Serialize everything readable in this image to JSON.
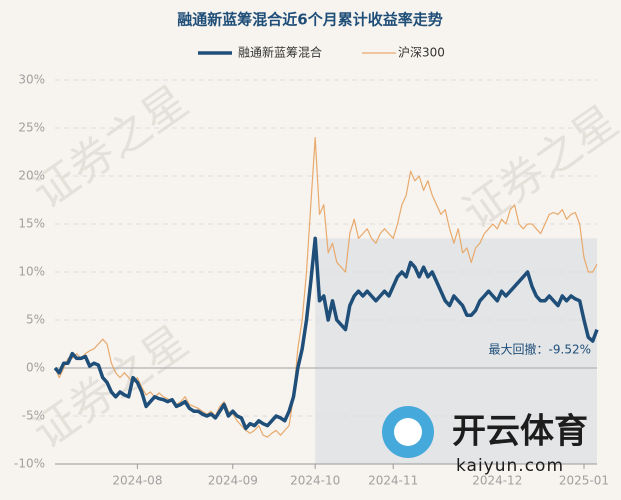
{
  "chart_data": {
    "type": "line",
    "title": "融通新蓝筹混合近6个月累计收益率走势",
    "categories": [
      null,
      null,
      null,
      null,
      null,
      null,
      null,
      null,
      null,
      null,
      null,
      null,
      null,
      null,
      null,
      null,
      null,
      null,
      null,
      "2024-08",
      null,
      null,
      null,
      null,
      null,
      null,
      null,
      null,
      null,
      null,
      null,
      null,
      null,
      null,
      null,
      null,
      null,
      null,
      null,
      null,
      null,
      "2024-09",
      null,
      null,
      null,
      null,
      null,
      null,
      null,
      null,
      null,
      null,
      null,
      null,
      null,
      null,
      null,
      null,
      null,
      null,
      "2024-10",
      null,
      null,
      null,
      null,
      null,
      null,
      null,
      null,
      null,
      null,
      null,
      null,
      null,
      null,
      null,
      null,
      null,
      "2024-11",
      null,
      null,
      null,
      null,
      null,
      null,
      null,
      null,
      null,
      null,
      null,
      null,
      null,
      null,
      null,
      null,
      null,
      null,
      null,
      null,
      null,
      null,
      null,
      "2024-12",
      null,
      null,
      null,
      null,
      null,
      null,
      null,
      null,
      null,
      null,
      null,
      null,
      null,
      null,
      null,
      null,
      null,
      null,
      null,
      "2025-01",
      null,
      null,
      null
    ],
    "series": [
      {
        "name": "融通新蓝筹混合",
        "color": "#1f4e79",
        "width": 3.5,
        "values": [
          0,
          -0.5,
          0.5,
          0.5,
          1.5,
          1,
          1,
          1.2,
          0.2,
          0.5,
          0.3,
          -1,
          -1.5,
          -2.5,
          -3,
          -2.5,
          -2.8,
          -3,
          -1,
          -1.5,
          -2.5,
          -4,
          -3.5,
          -3,
          -3.2,
          -3.3,
          -3.5,
          -3.3,
          -4,
          -3.8,
          -3.5,
          -4.2,
          -4.5,
          -4.5,
          -4.8,
          -5,
          -4.8,
          -5.2,
          -4.5,
          -3.8,
          -5,
          -4.5,
          -5,
          -5.2,
          -6.3,
          -5.8,
          -6,
          -5.5,
          -5.8,
          -6,
          -5.5,
          -5,
          -5.2,
          -5.5,
          -4.5,
          -3,
          0,
          2,
          5,
          9,
          13.5,
          7,
          7.5,
          5,
          7,
          5,
          4.5,
          4,
          6.5,
          7.5,
          8,
          7.5,
          8,
          7.5,
          7,
          7.5,
          8,
          7.5,
          8.5,
          9.5,
          10,
          9.5,
          11,
          10.5,
          9.5,
          10.5,
          9.5,
          10,
          9,
          8,
          7,
          6.5,
          7.5,
          7,
          6.5,
          5.5,
          5.5,
          6,
          7,
          7.5,
          8,
          7.5,
          7,
          8,
          7.5,
          8,
          8.5,
          9,
          9.5,
          10,
          8.5,
          7.5,
          7,
          7,
          7.5,
          7,
          6.5,
          7.5,
          7,
          7.5,
          7.2,
          7,
          5,
          3.2,
          2.8,
          4
        ]
      },
      {
        "name": "沪深300",
        "color": "#e8a96c",
        "width": 1.2,
        "values": [
          0,
          -1,
          0,
          1,
          1,
          1.5,
          1,
          1.5,
          1.8,
          2,
          2.5,
          3,
          2.5,
          0.5,
          -0.5,
          -1,
          -0.5,
          -1,
          -1.5,
          -1,
          -2,
          -2.8,
          -2.5,
          -3,
          -2.6,
          -3,
          -3.2,
          -3.5,
          -3.8,
          -3.5,
          -3,
          -3.8,
          -4,
          -4.2,
          -4.5,
          -4.8,
          -4.5,
          -5,
          -4,
          -3.5,
          -4.5,
          -4.8,
          -5.5,
          -6,
          -6.5,
          -6.8,
          -6.5,
          -6,
          -7,
          -7.2,
          -6.8,
          -6.5,
          -7,
          -6.5,
          -6,
          -3,
          2,
          5,
          10,
          17,
          24,
          16,
          17,
          12,
          13,
          11,
          10.5,
          10,
          14,
          15.5,
          13.5,
          14,
          14.5,
          13.5,
          13,
          14,
          14.5,
          14,
          13.5,
          15,
          17,
          18,
          20.5,
          19.5,
          20,
          18.5,
          19.5,
          18,
          17,
          16,
          16.5,
          14.5,
          13,
          14.5,
          12,
          12.5,
          11,
          12.5,
          13,
          14,
          14.5,
          15,
          14.5,
          15.5,
          15,
          16.5,
          17,
          15,
          14.5,
          15,
          15,
          14.5,
          14,
          15,
          16,
          16.2,
          16,
          16.5,
          15.5,
          16,
          16.2,
          15,
          11.5,
          10,
          10,
          10.8
        ]
      }
    ],
    "ylim": [
      -10,
      30
    ],
    "yticks": [
      {
        "value": -10,
        "label": "-10%"
      },
      {
        "value": -5,
        "label": "-5%"
      },
      {
        "value": 0,
        "label": "0%"
      },
      {
        "value": 5,
        "label": "5%"
      },
      {
        "value": 10,
        "label": "10%"
      },
      {
        "value": 15,
        "label": "15%"
      },
      {
        "value": 20,
        "label": "20%"
      },
      {
        "value": 25,
        "label": "25%"
      },
      {
        "value": 30,
        "label": "30%"
      }
    ],
    "grid": true,
    "legend": "top",
    "annotation": {
      "text": "最大回撤：-9.52%",
      "from": 60,
      "to": 125
    },
    "watermark": "证券之星",
    "logo": {
      "text": "开云体育",
      "url": "kaiyun.com"
    }
  }
}
